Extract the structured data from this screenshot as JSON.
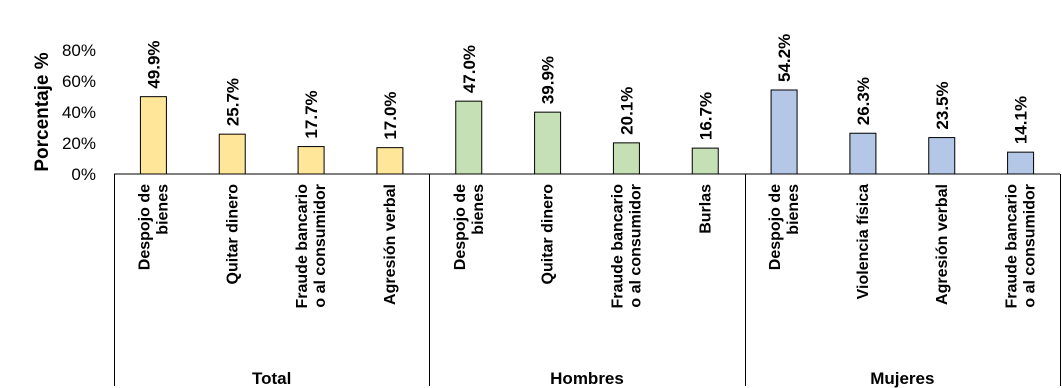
{
  "chart_data": {
    "type": "bar",
    "ylabel": "Porcentaje %",
    "ylim": [
      0,
      80
    ],
    "yticks": [
      "0%",
      "20%",
      "40%",
      "60%",
      "80%"
    ],
    "grid": false,
    "groups": [
      {
        "name": "Total",
        "color": "#FFE699",
        "categories": [
          [
            "Despojo de",
            "bienes"
          ],
          [
            "Quitar dinero"
          ],
          [
            "Fraude bancario",
            "o al consumidor"
          ],
          [
            "Agresión verbal"
          ]
        ],
        "values": [
          49.9,
          25.7,
          17.7,
          17.0
        ],
        "labels": [
          "49.9%",
          "25.7%",
          "17.7%",
          "17.0%"
        ]
      },
      {
        "name": "Hombres",
        "color": "#C5E0B4",
        "categories": [
          [
            "Despojo de",
            "bienes"
          ],
          [
            "Quitar dinero"
          ],
          [
            "Fraude bancario",
            "o al consumidor"
          ],
          [
            "Burlas"
          ]
        ],
        "values": [
          47.0,
          39.9,
          20.1,
          16.7
        ],
        "labels": [
          "47.0%",
          "39.9%",
          "20.1%",
          "16.7%"
        ]
      },
      {
        "name": "Mujeres",
        "color": "#B4C7E7",
        "categories": [
          [
            "Despojo de",
            "bienes"
          ],
          [
            "Violencia física"
          ],
          [
            "Agresión verbal"
          ],
          [
            "Fraude bancario",
            "o al consumidor"
          ]
        ],
        "values": [
          54.2,
          26.3,
          23.5,
          14.1
        ],
        "labels": [
          "54.2%",
          "26.3%",
          "23.5%",
          "14.1%"
        ]
      }
    ]
  }
}
